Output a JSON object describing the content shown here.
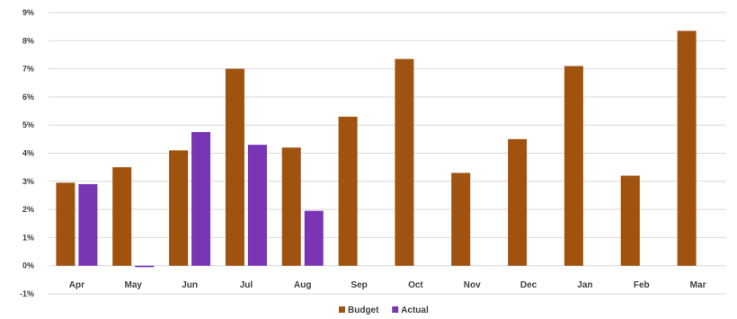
{
  "chart_data": {
    "type": "bar",
    "title": "",
    "xlabel": "",
    "ylabel": "",
    "categories": [
      "Apr",
      "May",
      "Jun",
      "Jul",
      "Aug",
      "Sep",
      "Oct",
      "Nov",
      "Dec",
      "Jan",
      "Feb",
      "Mar"
    ],
    "series": [
      {
        "name": "Budget",
        "color": "#a0520f",
        "values": [
          2.95,
          3.5,
          4.1,
          7.0,
          4.2,
          5.3,
          7.35,
          3.3,
          4.5,
          7.1,
          3.2,
          8.35
        ]
      },
      {
        "name": "Actual",
        "color": "#7a35b5",
        "values": [
          2.9,
          -0.05,
          4.75,
          4.3,
          1.95,
          null,
          null,
          null,
          null,
          null,
          null,
          null
        ]
      }
    ],
    "ylim": [
      -1,
      9
    ],
    "yticks": [
      "-1%",
      "0%",
      "1%",
      "2%",
      "3%",
      "4%",
      "5%",
      "6%",
      "7%",
      "8%",
      "9%"
    ],
    "grid": true,
    "legend": "bottom"
  }
}
